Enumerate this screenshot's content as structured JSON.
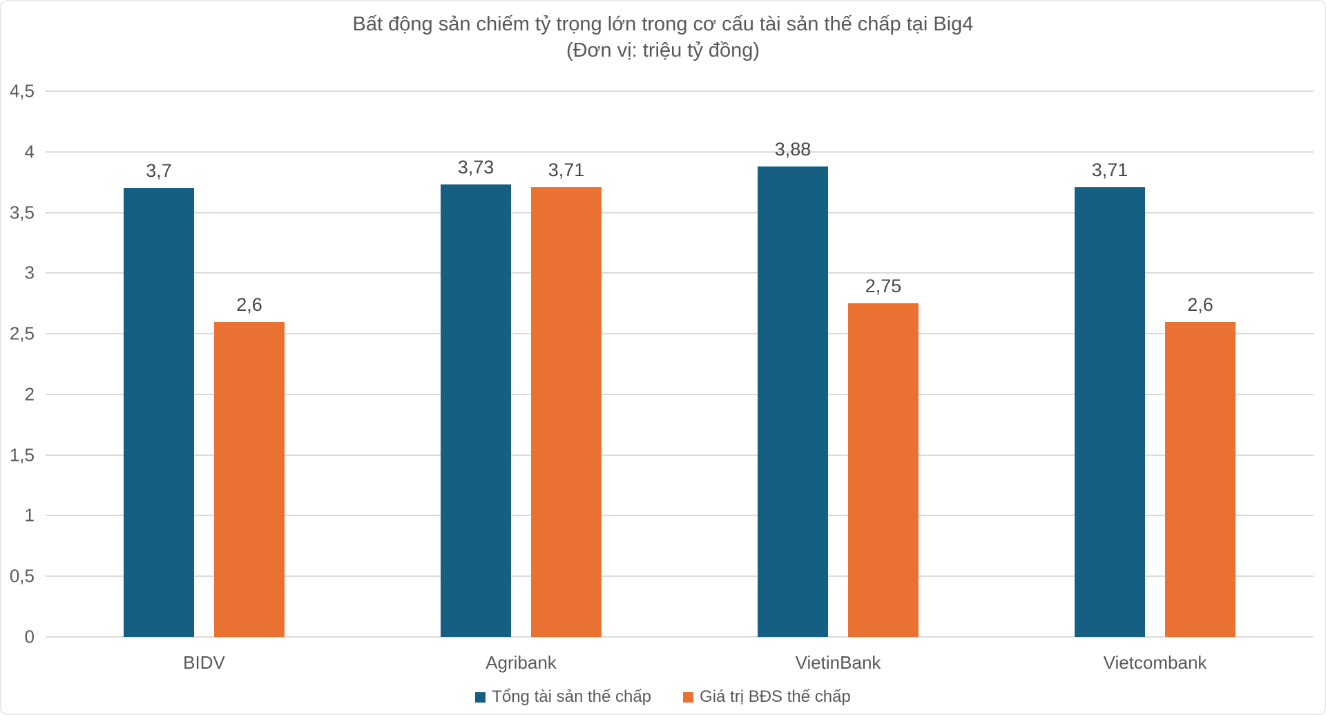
{
  "chart": {
    "title": "Bất động sản chiếm tỷ trọng lớn trong cơ cấu tài sản thế chấp tại Big4",
    "subtitle": "(Đơn vị: triệu tỷ đồng)"
  },
  "chart_data": {
    "type": "bar",
    "title": "Bất động sản chiếm tỷ trọng lớn trong cơ cấu tài sản thế chấp tại Big4",
    "subtitle": "(Đơn vị: triệu tỷ đồng)",
    "unit": "triệu tỷ đồng",
    "categories": [
      "BIDV",
      "Agribank",
      "VietinBank",
      "Vietcombank"
    ],
    "category_keys": [
      "bidv",
      "agribank",
      "vietinbank",
      "vietcombank"
    ],
    "series": [
      {
        "name": "Tổng tài sản thế chấp",
        "key": "total-collateral-assets",
        "color": "#156082",
        "values": [
          3.7,
          3.73,
          3.88,
          3.71
        ],
        "value_labels": [
          "3,7",
          "3,73",
          "3,88",
          "3,71"
        ]
      },
      {
        "name": "Giá trị BĐS thế chấp",
        "key": "real-estate-collateral-value",
        "color": "#E97132",
        "values": [
          2.6,
          3.71,
          2.75,
          2.6
        ],
        "value_labels": [
          "2,6",
          "3,71",
          "2,75",
          "2,6"
        ]
      }
    ],
    "y_axis": {
      "min": 0,
      "max": 4.5,
      "step": 0.5,
      "tick_labels": [
        "0",
        "0,5",
        "1",
        "1,5",
        "2",
        "2,5",
        "3",
        "3,5",
        "4",
        "4,5"
      ]
    },
    "grid": true,
    "legend_position": "bottom",
    "colors": {
      "gridline": "#dbdbdb",
      "axis_text": "#595959",
      "value_label_text": "#474747",
      "title_text": "#595959"
    }
  }
}
